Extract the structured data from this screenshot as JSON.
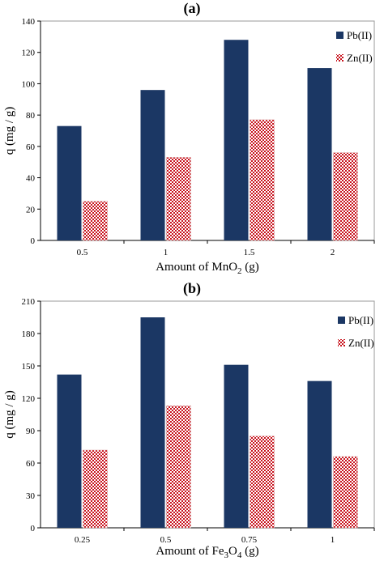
{
  "chart_data": [
    {
      "type": "bar",
      "title": "(a)",
      "xlabel": "Amount of MnO",
      "xlabel_sub": "2",
      "xlabel_suffix": " (g)",
      "ylabel": "q (mg / g)",
      "ylim": [
        0,
        140
      ],
      "yticks": [
        0,
        20,
        40,
        60,
        80,
        100,
        120,
        140
      ],
      "categories": [
        "0.5",
        "1",
        "1.5",
        "2"
      ],
      "legend_position": "top-right",
      "grid": false,
      "series": [
        {
          "name": "Pb(II)",
          "values": [
            73,
            96,
            128,
            110
          ],
          "color": "#1b3764",
          "pattern": "solid"
        },
        {
          "name": "Zn(II)",
          "values": [
            25,
            53,
            77,
            56
          ],
          "color": "#c8141e",
          "pattern": "checkerboard"
        }
      ]
    },
    {
      "type": "bar",
      "title": "(b)",
      "xlabel": "Amount of Fe",
      "xlabel_sub": "3",
      "xlabel_mid": "O",
      "xlabel_sub2": "4",
      "xlabel_suffix": " (g)",
      "ylabel": "q (mg / g)",
      "ylim": [
        0,
        210
      ],
      "yticks": [
        0,
        30,
        60,
        90,
        120,
        150,
        180,
        210
      ],
      "categories": [
        "0.25",
        "0.5",
        "0.75",
        "1"
      ],
      "legend_position": "top-right",
      "grid": false,
      "series": [
        {
          "name": "Pb(II)",
          "values": [
            142,
            195,
            151,
            136
          ],
          "color": "#1b3764",
          "pattern": "solid"
        },
        {
          "name": "Zn(II)",
          "values": [
            72,
            113,
            85,
            66
          ],
          "color": "#c8141e",
          "pattern": "checkerboard"
        }
      ]
    }
  ]
}
